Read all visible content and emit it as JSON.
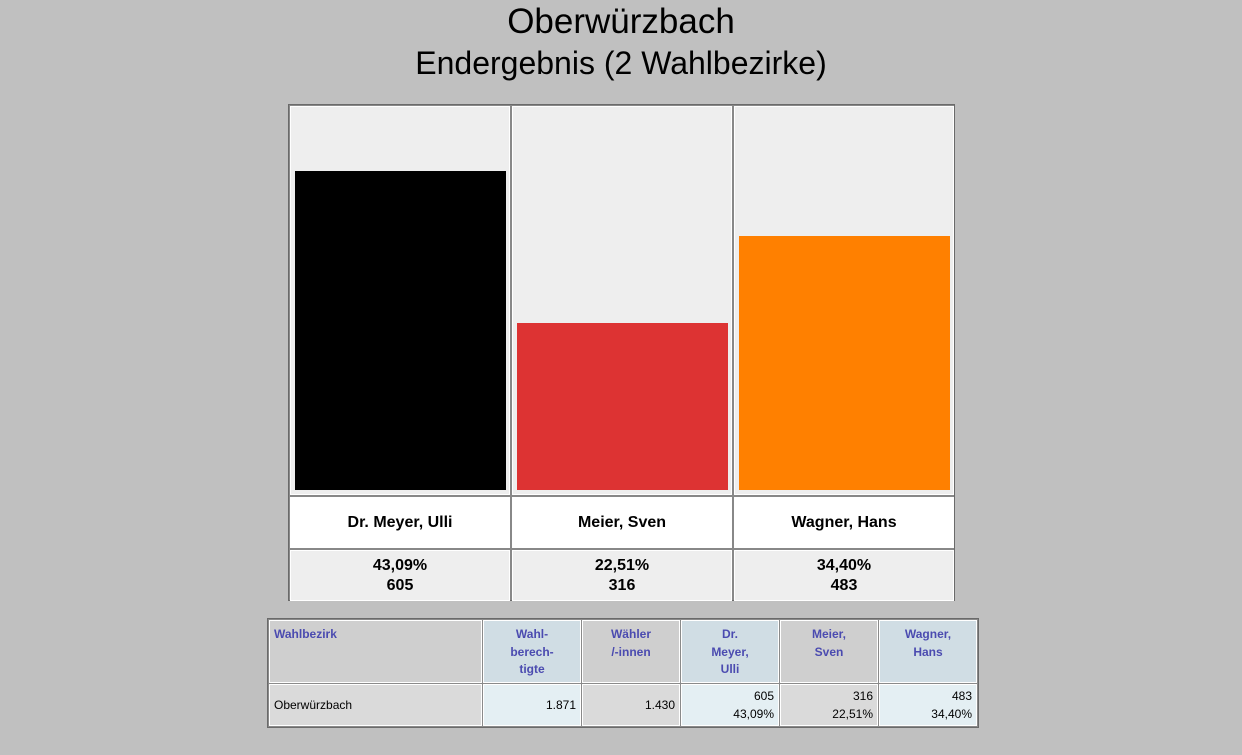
{
  "page": {
    "title": "Oberwürzbach",
    "subtitle": "Endergebnis (2 Wahlbezirke)"
  },
  "chart_data": {
    "type": "bar",
    "categories": [
      "Dr. Meyer, Ulli",
      "Meier, Sven",
      "Wagner, Hans"
    ],
    "values": [
      43.09,
      22.51,
      34.4
    ],
    "votes": [
      605,
      316,
      483
    ],
    "percent_labels": [
      "43,09%",
      "22,51%",
      "34,40%"
    ],
    "vote_labels": [
      "605",
      "316",
      "483"
    ],
    "colors": [
      "#000000",
      "#dd3333",
      "#ff8000"
    ],
    "ylim": [
      0,
      51.5
    ],
    "grid": false
  },
  "table": {
    "headers": [
      [
        "Wahlbezirk"
      ],
      [
        "Wahl-",
        "berech-",
        "tigte"
      ],
      [
        "Wähler",
        "/-innen"
      ],
      [
        "Dr.",
        "Meyer,",
        "Ulli"
      ],
      [
        "Meier,",
        "Sven"
      ],
      [
        "Wagner,",
        "Hans"
      ]
    ],
    "rows": [
      {
        "name": "Oberwürzbach",
        "eligible": "1.871",
        "voters": "1.430",
        "c1_votes": "605",
        "c1_pct": "43,09%",
        "c2_votes": "316",
        "c2_pct": "22,51%",
        "c3_votes": "483",
        "c3_pct": "34,40%"
      }
    ]
  }
}
